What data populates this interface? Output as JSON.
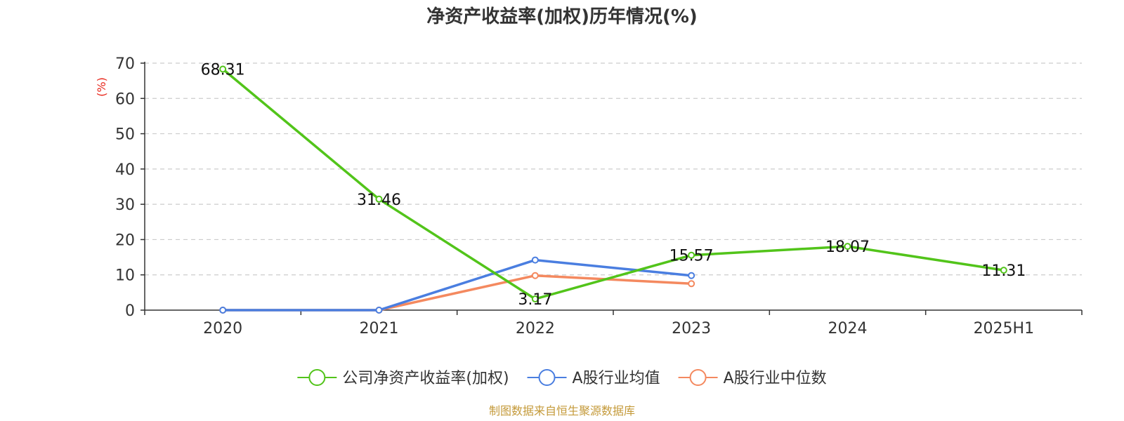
{
  "chart_data": {
    "type": "line",
    "title": "净资产收益率(加权)历年情况(%)",
    "ylabel": "(%)",
    "xlabel": "",
    "categories": [
      "2020",
      "2021",
      "2022",
      "2023",
      "2024",
      "2025H1"
    ],
    "ylim": [
      0,
      70
    ],
    "yticks": [
      0,
      10,
      20,
      30,
      40,
      50,
      60,
      70
    ],
    "grid": true,
    "legend_position": "bottom",
    "series": [
      {
        "name": "公司净资产收益率(加权)",
        "color": "#52c41a",
        "values": [
          68.31,
          31.46,
          3.17,
          15.57,
          18.07,
          11.31
        ],
        "labels": [
          "68.31",
          "31.46",
          "3.17",
          "15.57",
          "18.07",
          "11.31"
        ]
      },
      {
        "name": "A股行业均值",
        "color": "#4a7ee0",
        "values": [
          0,
          0,
          14.2,
          9.8,
          null,
          null
        ]
      },
      {
        "name": "A股行业中位数",
        "color": "#f4895f",
        "values": [
          0,
          0,
          9.8,
          7.5,
          null,
          null
        ]
      }
    ]
  },
  "source": "制图数据来自恒生聚源数据库"
}
